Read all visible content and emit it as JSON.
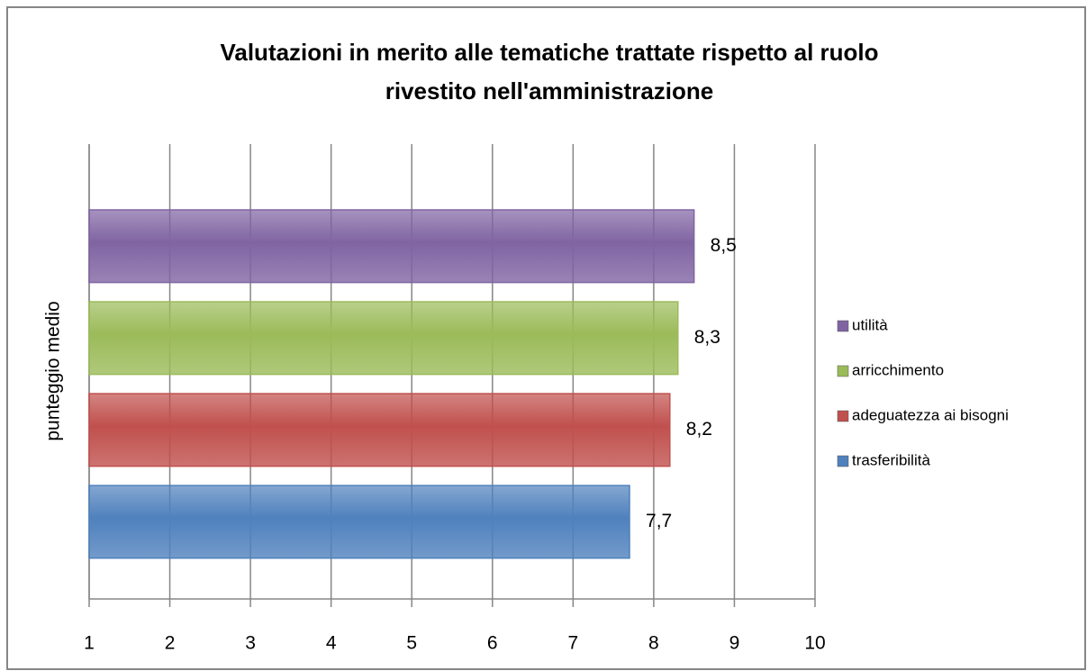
{
  "chart_data": {
    "type": "hbar",
    "title": [
      "Valutazioni in merito alle tematiche trattate  rispetto al ruolo",
      "rivestito nell'amministrazione"
    ],
    "y_label": "punteggio medio",
    "series": [
      {
        "name": "trasferibilità",
        "color": "#4f81bd",
        "values": [
          7.7
        ],
        "value_labels": [
          "7,7"
        ]
      },
      {
        "name": "adeguatezza ai bisogni",
        "color": "#c0504d",
        "values": [
          8.2
        ],
        "value_labels": [
          "8,2"
        ]
      },
      {
        "name": "arricchimento",
        "color": "#9bbb59",
        "values": [
          8.3
        ],
        "value_labels": [
          "8,3"
        ]
      },
      {
        "name": "utilità",
        "color": "#8064a2",
        "values": [
          8.5
        ],
        "value_labels": [
          "8,5"
        ]
      }
    ],
    "xlim": [
      1,
      10
    ],
    "xticks": [
      1,
      2,
      3,
      4,
      5,
      6,
      7,
      8,
      9,
      10
    ],
    "grid": true,
    "legend": "right"
  }
}
